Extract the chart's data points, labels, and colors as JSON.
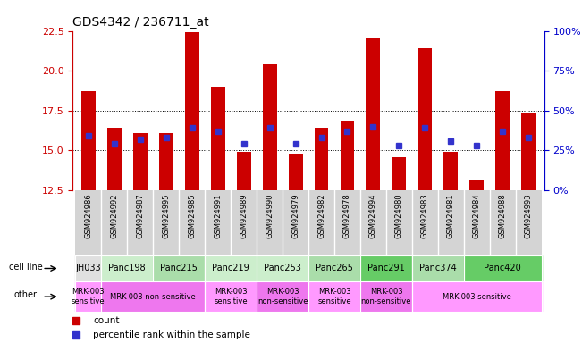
{
  "title": "GDS4342 / 236711_at",
  "samples": [
    "GSM924986",
    "GSM924992",
    "GSM924987",
    "GSM924995",
    "GSM924985",
    "GSM924991",
    "GSM924989",
    "GSM924990",
    "GSM924979",
    "GSM924982",
    "GSM924978",
    "GSM924994",
    "GSM924980",
    "GSM924983",
    "GSM924981",
    "GSM924984",
    "GSM924988",
    "GSM924993"
  ],
  "bar_values": [
    18.7,
    16.4,
    16.1,
    16.1,
    22.4,
    19.0,
    14.9,
    20.4,
    14.8,
    16.4,
    16.9,
    22.0,
    14.6,
    21.4,
    14.9,
    13.2,
    18.7,
    17.4
  ],
  "percentile_values": [
    15.9,
    15.4,
    15.7,
    15.8,
    16.4,
    16.2,
    15.4,
    16.4,
    15.4,
    15.8,
    16.2,
    16.5,
    15.3,
    16.4,
    15.6,
    15.3,
    16.2,
    15.8
  ],
  "ylim_left": [
    12.5,
    22.5
  ],
  "ylim_right": [
    0,
    100
  ],
  "yticks_left": [
    12.5,
    15.0,
    17.5,
    20.0,
    22.5
  ],
  "yticks_right": [
    0,
    25,
    50,
    75,
    100
  ],
  "ytick_labels_right": [
    "0%",
    "25%",
    "50%",
    "75%",
    "100%"
  ],
  "bar_color": "#cc0000",
  "dot_color": "#3333cc",
  "cell_lines": [
    {
      "name": "JH033",
      "start": 0,
      "end": 1,
      "color": "#e0e0e0"
    },
    {
      "name": "Panc198",
      "start": 1,
      "end": 3,
      "color": "#cceecc"
    },
    {
      "name": "Panc215",
      "start": 3,
      "end": 5,
      "color": "#aaddaa"
    },
    {
      "name": "Panc219",
      "start": 5,
      "end": 7,
      "color": "#cceecc"
    },
    {
      "name": "Panc253",
      "start": 7,
      "end": 9,
      "color": "#cceecc"
    },
    {
      "name": "Panc265",
      "start": 9,
      "end": 11,
      "color": "#aaddaa"
    },
    {
      "name": "Panc291",
      "start": 11,
      "end": 13,
      "color": "#66cc66"
    },
    {
      "name": "Panc374",
      "start": 13,
      "end": 15,
      "color": "#aaddaa"
    },
    {
      "name": "Panc420",
      "start": 15,
      "end": 18,
      "color": "#66cc66"
    }
  ],
  "other_groups": [
    {
      "label": "MRK-003\nsensitive",
      "start": 0,
      "end": 1,
      "color": "#ff99ff"
    },
    {
      "label": "MRK-003 non-sensitive",
      "start": 1,
      "end": 5,
      "color": "#ee77ee"
    },
    {
      "label": "MRK-003\nsensitive",
      "start": 5,
      "end": 7,
      "color": "#ff99ff"
    },
    {
      "label": "MRK-003\nnon-sensitive",
      "start": 7,
      "end": 9,
      "color": "#ee77ee"
    },
    {
      "label": "MRK-003\nsensitive",
      "start": 9,
      "end": 11,
      "color": "#ff99ff"
    },
    {
      "label": "MRK-003\nnon-sensitive",
      "start": 11,
      "end": 13,
      "color": "#ee77ee"
    },
    {
      "label": "MRK-003 sensitive",
      "start": 13,
      "end": 18,
      "color": "#ff99ff"
    }
  ],
  "tick_label_color_left": "#cc0000",
  "tick_label_color_right": "#0000cc",
  "left_axis_color": "#cc0000",
  "right_axis_color": "#0000cc",
  "bar_width": 0.55,
  "sample_bg_color": "#d4d4d4"
}
